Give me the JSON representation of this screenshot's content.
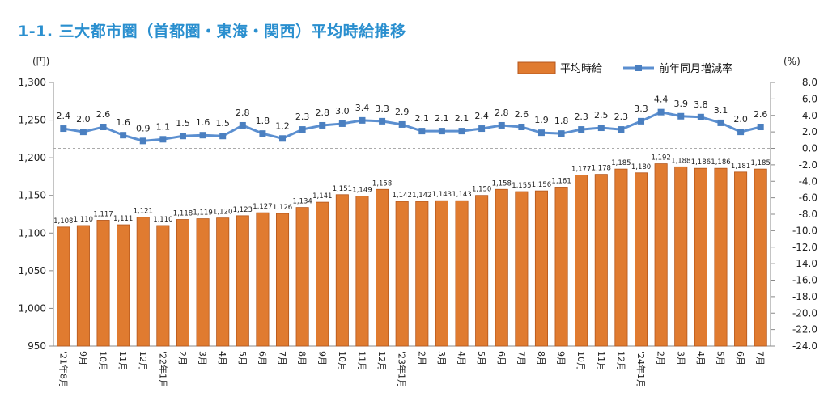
{
  "title": "1-1. 三大都市圏（首都圏・東海・関西）平均時給推移",
  "chart_data": {
    "type": "bar+line",
    "categories": [
      "'21年8月",
      "9月",
      "10月",
      "11月",
      "12月",
      "'22年1月",
      "2月",
      "3月",
      "4月",
      "5月",
      "6月",
      "7月",
      "8月",
      "9月",
      "10月",
      "11月",
      "12月",
      "'23年1月",
      "2月",
      "3月",
      "4月",
      "5月",
      "6月",
      "7月",
      "8月",
      "9月",
      "10月",
      "11月",
      "12月",
      "'24年1月",
      "2月",
      "3月",
      "4月",
      "5月",
      "6月",
      "7月"
    ],
    "series": [
      {
        "name": "平均時給",
        "type": "bar",
        "axis": "left",
        "color": "#e07b30",
        "values": [
          1108,
          1110,
          1117,
          1111,
          1121,
          1110,
          1118,
          1119,
          1120,
          1123,
          1127,
          1126,
          1134,
          1141,
          1151,
          1149,
          1158,
          1142,
          1142,
          1143,
          1143,
          1150,
          1158,
          1155,
          1156,
          1161,
          1177,
          1178,
          1185,
          1180,
          1192,
          1188,
          1186,
          1186,
          1181,
          1185
        ],
        "labels": [
          "1,108",
          "1,110",
          "1,117",
          "1,111",
          "1,121",
          "1,110",
          "1,118",
          "1,119",
          "1,120",
          "1,123",
          "1,127",
          "1,126",
          "1,134",
          "1,141",
          "1,151",
          "1,149",
          "1,158",
          "1,142",
          "1,142",
          "1,143",
          "1,143",
          "1,150",
          "1,158",
          "1,155",
          "1,156",
          "1,161",
          "1,177",
          "1,178",
          "1,185",
          "1,180",
          "1,192",
          "1,188",
          "1,186",
          "1,186",
          "1,181",
          "1,185"
        ]
      },
      {
        "name": "前年同月増減率",
        "type": "line",
        "axis": "right",
        "color": "#5b8fd0",
        "values": [
          2.4,
          2.0,
          2.6,
          1.6,
          0.9,
          1.1,
          1.5,
          1.6,
          1.5,
          2.8,
          1.8,
          1.2,
          2.3,
          2.8,
          3.0,
          3.4,
          3.3,
          2.9,
          2.1,
          2.1,
          2.1,
          2.4,
          2.8,
          2.6,
          1.9,
          1.8,
          2.3,
          2.5,
          2.3,
          3.3,
          4.4,
          3.9,
          3.8,
          3.1,
          2.0,
          2.6
        ],
        "labels": [
          "2.4",
          "2.0",
          "2.6",
          "1.6",
          "0.9",
          "1.1",
          "1.5",
          "1.6",
          "1.5",
          "2.8",
          "1.8",
          "1.2",
          "2.3",
          "2.8",
          "3.0",
          "3.4",
          "3.3",
          "2.9",
          "2.1",
          "2.1",
          "2.1",
          "2.4",
          "2.8",
          "2.6",
          "1.9",
          "1.8",
          "2.3",
          "2.5",
          "2.3",
          "3.3",
          "4.4",
          "3.9",
          "3.8",
          "3.1",
          "2.0",
          "2.6"
        ]
      }
    ],
    "left_axis": {
      "unit": "(円)",
      "min": 950,
      "max": 1300,
      "ticks": [
        950,
        1000,
        1050,
        1100,
        1150,
        1200,
        1250,
        1300
      ],
      "tick_labels": [
        "950",
        "1,000",
        "1,050",
        "1,100",
        "1,150",
        "1,200",
        "1,250",
        "1,300"
      ]
    },
    "right_axis": {
      "unit": "(%)",
      "min": -24,
      "max": 8,
      "ticks": [
        8,
        6,
        4,
        2,
        0,
        -2,
        -4,
        -6,
        -8,
        -10,
        -12,
        -14,
        -16,
        -18,
        -20,
        -22,
        -24
      ],
      "tick_labels": [
        "8.0",
        "6.0",
        "4.0",
        "2.0",
        "0.0",
        "-2.0",
        "-4.0",
        "-6.0",
        "-8.0",
        "-10.0",
        "-12.0",
        "-14.0",
        "-16.0",
        "-18.0",
        "-20.0",
        "-22.0",
        "-24.0"
      ]
    },
    "zero_line": "dashed",
    "legend_position": "top-right",
    "grid": false
  }
}
